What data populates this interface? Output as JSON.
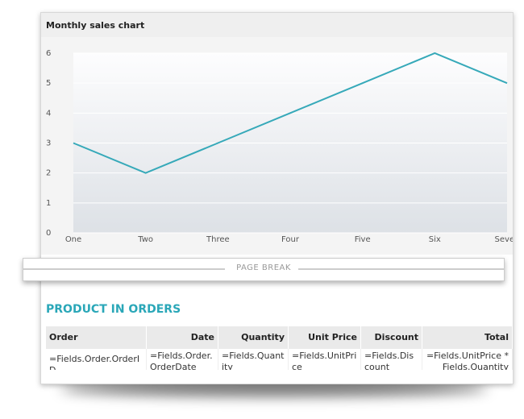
{
  "chart_data": {
    "type": "line",
    "title": "Monthly sales chart",
    "categories": [
      "One",
      "Two",
      "Three",
      "Four",
      "Five",
      "Six",
      "Seven"
    ],
    "values": [
      3,
      2,
      3,
      4,
      5,
      6,
      5
    ],
    "color": "#36a9b9",
    "ylim": [
      0,
      6
    ],
    "yticks": [
      0,
      1,
      2,
      3,
      4,
      5,
      6
    ],
    "grid": true
  },
  "page_break": {
    "label": "PAGE BREAK"
  },
  "section_title": "PRODUCT IN ORDERS",
  "table": {
    "headers": [
      "Order",
      "Date",
      "Quantity",
      "Unit Price",
      "Discount",
      "Total"
    ],
    "rows": [
      [
        "=Fields.Order.OrderID",
        "=Fields.Order.OrderDate",
        "=Fields.Quantity",
        "=Fields.UnitPrice",
        "=Fields.Discount",
        "=Fields.UnitPrice * Fields.Quantity"
      ]
    ]
  }
}
